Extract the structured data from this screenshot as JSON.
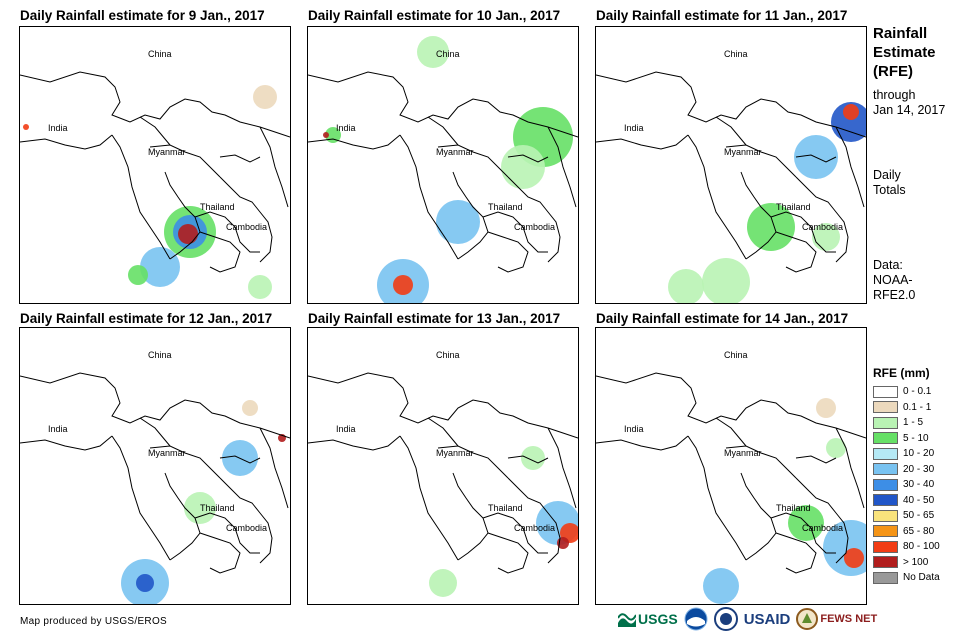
{
  "panels": [
    {
      "title": "Daily Rainfall estimate for 9 Jan., 2017"
    },
    {
      "title": "Daily Rainfall estimate for 10 Jan., 2017"
    },
    {
      "title": "Daily Rainfall estimate for 11 Jan., 2017"
    },
    {
      "title": "Daily Rainfall estimate for 12 Jan., 2017"
    },
    {
      "title": "Daily Rainfall estimate for 13 Jan., 2017"
    },
    {
      "title": "Daily Rainfall estimate for 14 Jan., 2017"
    }
  ],
  "map_labels": {
    "china": "China",
    "india": "India",
    "myanmar": "Myanmar",
    "thailand": "Thailand",
    "cambodia": "Cambodia"
  },
  "side": {
    "title_line1": "Rainfall",
    "title_line2": "Estimate",
    "title_line3": "(RFE)",
    "through": "through",
    "date": "Jan 14, 2017",
    "daily": "Daily",
    "totals": "Totals",
    "data_label": "Data:",
    "source1": "NOAA-",
    "source2": "RFE2.0"
  },
  "legend": {
    "title": "RFE (mm)",
    "items": [
      {
        "label": "0 - 0.1",
        "color": "#ffffff"
      },
      {
        "label": "0.1 - 1",
        "color": "#ecd9bd"
      },
      {
        "label": "1 - 5",
        "color": "#b9f3b4"
      },
      {
        "label": "5 - 10",
        "color": "#66e066"
      },
      {
        "label": "10 - 20",
        "color": "#b5e9f5"
      },
      {
        "label": "20 - 30",
        "color": "#79c3f1"
      },
      {
        "label": "30 - 40",
        "color": "#3d8ee6"
      },
      {
        "label": "40 - 50",
        "color": "#2156c8"
      },
      {
        "label": "50 - 65",
        "color": "#f9e37c"
      },
      {
        "label": "65 - 80",
        "color": "#f59416"
      },
      {
        "label": "80 - 100",
        "color": "#f23c14"
      },
      {
        "label": "> 100",
        "color": "#b11d1d"
      },
      {
        "label": "No Data",
        "color": "#999999"
      }
    ]
  },
  "credit": "Map produced by USGS/EROS",
  "logos": {
    "usgs": "USGS",
    "usaid": "USAID",
    "fewsnet": "FEWS NET"
  }
}
